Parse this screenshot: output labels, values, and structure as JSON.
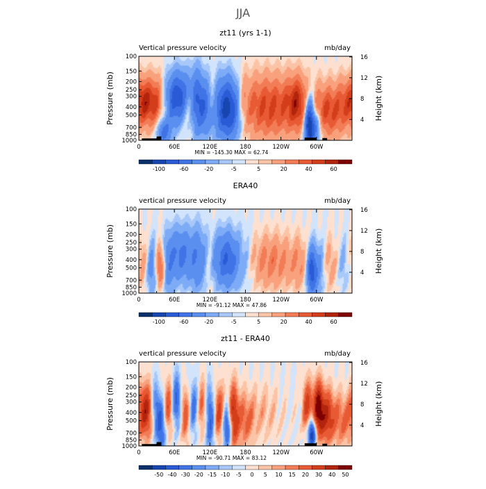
{
  "page": {
    "title": "JJA"
  },
  "chart_data": [
    {
      "type": "heatmap",
      "title": "zt11 (yrs 1-1)",
      "subtitle_left": "Vertical pressure velocity",
      "subtitle_right": "mb/day",
      "xlabel": "",
      "ylabel": "Pressure (mb)",
      "ylabel_right": "Height (km)",
      "x_ticks": [
        "0",
        "60E",
        "120E",
        "180",
        "120W",
        "60W"
      ],
      "x_tick_lon": [
        0,
        60,
        120,
        180,
        240,
        300
      ],
      "xlim": [
        0,
        360
      ],
      "y_ticks": [
        "100",
        "150",
        "200",
        "250",
        "300",
        "400",
        "500",
        "700",
        "850",
        "1000"
      ],
      "y_tick_values": [
        100,
        150,
        200,
        250,
        300,
        400,
        500,
        700,
        850,
        1000
      ],
      "ylim": [
        1000,
        100
      ],
      "y_scale": "log",
      "right_ticks": [
        "4",
        "8",
        "12",
        "16"
      ],
      "right_tick_values": [
        4,
        8,
        12,
        16
      ],
      "stats": "MIN = -145.30   MAX = 62.74",
      "colorbar_labels": [
        "-100",
        "-60",
        "-20",
        "-5",
        "5",
        "20",
        "40",
        "60"
      ],
      "colorbar_colors": [
        "#08306b",
        "#1746b0",
        "#2a5bd7",
        "#3f73e6",
        "#5a8ff0",
        "#7eabf5",
        "#a8c8fa",
        "#d2e4fc",
        "#fde0cf",
        "#fbc4a6",
        "#f8a17c",
        "#f27c56",
        "#e85a33",
        "#d43d1a",
        "#b3240d",
        "#7f0000"
      ],
      "levels": [
        -120,
        -100,
        -80,
        -60,
        -40,
        -20,
        -10,
        -5,
        0,
        5,
        10,
        20,
        30,
        40,
        50,
        60,
        80
      ],
      "features": [
        {
          "lon": 10,
          "p": 350,
          "amp": 45,
          "wl": 12,
          "wp": 0.45
        },
        {
          "lon": 30,
          "p": 350,
          "amp": 30,
          "wl": 10,
          "wp": 0.5
        },
        {
          "lon": 42,
          "p": 800,
          "amp": -50,
          "wl": 8,
          "wp": 0.25
        },
        {
          "lon": 55,
          "p": 350,
          "amp": -30,
          "wl": 10,
          "wp": 0.5
        },
        {
          "lon": 70,
          "p": 300,
          "amp": -65,
          "wl": 12,
          "wp": 0.45
        },
        {
          "lon": 85,
          "p": 400,
          "amp": 25,
          "wl": 8,
          "wp": 0.4
        },
        {
          "lon": 98,
          "p": 350,
          "amp": -55,
          "wl": 8,
          "wp": 0.6
        },
        {
          "lon": 112,
          "p": 400,
          "amp": -40,
          "wl": 8,
          "wp": 0.5
        },
        {
          "lon": 125,
          "p": 350,
          "amp": 20,
          "wl": 6,
          "wp": 0.4
        },
        {
          "lon": 150,
          "p": 420,
          "amp": -100,
          "wl": 16,
          "wp": 0.55
        },
        {
          "lon": 175,
          "p": 350,
          "amp": 15,
          "wl": 8,
          "wp": 0.5
        },
        {
          "lon": 220,
          "p": 400,
          "amp": 42,
          "wl": 40,
          "wp": 0.6
        },
        {
          "lon": 268,
          "p": 350,
          "amp": 35,
          "wl": 12,
          "wp": 0.5
        },
        {
          "lon": 288,
          "p": 650,
          "amp": -110,
          "wl": 6,
          "wp": 0.5
        },
        {
          "lon": 300,
          "p": 700,
          "amp": -40,
          "wl": 6,
          "wp": 0.3
        },
        {
          "lon": 320,
          "p": 450,
          "amp": 40,
          "wl": 20,
          "wp": 0.5
        },
        {
          "lon": 350,
          "p": 350,
          "amp": 20,
          "wl": 12,
          "wp": 0.5
        }
      ],
      "topo": [
        [
          5,
          30,
          950
        ],
        [
          30,
          38,
          900
        ],
        [
          280,
          300,
          930
        ],
        [
          310,
          318,
          940
        ]
      ]
    },
    {
      "type": "heatmap",
      "title": "ERA40",
      "subtitle_left": "vertical pressure velocity",
      "subtitle_right": "mb/day",
      "xlabel": "",
      "ylabel": "Pressure (mb)",
      "ylabel_right": "Height (km)",
      "x_ticks": [
        "0",
        "60E",
        "120E",
        "180",
        "120W",
        "60W"
      ],
      "x_tick_lon": [
        0,
        60,
        120,
        180,
        240,
        300
      ],
      "xlim": [
        0,
        360
      ],
      "y_ticks": [
        "100",
        "150",
        "200",
        "250",
        "300",
        "400",
        "500",
        "700",
        "850",
        "1000"
      ],
      "y_tick_values": [
        100,
        150,
        200,
        250,
        300,
        400,
        500,
        700,
        850,
        1000
      ],
      "ylim": [
        1000,
        100
      ],
      "y_scale": "log",
      "right_ticks": [
        "4",
        "8",
        "12",
        "16"
      ],
      "right_tick_values": [
        4,
        8,
        12,
        16
      ],
      "stats": "MIN = -91.12   MAX = 47.86",
      "colorbar_labels": [
        "-100",
        "-60",
        "-20",
        "-5",
        "5",
        "20",
        "40",
        "60"
      ],
      "colorbar_colors": [
        "#08306b",
        "#1746b0",
        "#2a5bd7",
        "#3f73e6",
        "#5a8ff0",
        "#7eabf5",
        "#a8c8fa",
        "#d2e4fc",
        "#fde0cf",
        "#fbc4a6",
        "#f8a17c",
        "#f27c56",
        "#e85a33",
        "#d43d1a",
        "#b3240d",
        "#7f0000"
      ],
      "levels": [
        -120,
        -100,
        -80,
        -60,
        -40,
        -20,
        -10,
        -5,
        0,
        5,
        10,
        20,
        30,
        40,
        50,
        60,
        80
      ],
      "features": [
        {
          "lon": 8,
          "p": 450,
          "amp": 20,
          "wl": 8,
          "wp": 0.5
        },
        {
          "lon": 22,
          "p": 500,
          "amp": -35,
          "wl": 8,
          "wp": 0.5
        },
        {
          "lon": 35,
          "p": 480,
          "amp": 45,
          "wl": 6,
          "wp": 0.4
        },
        {
          "lon": 50,
          "p": 500,
          "amp": -25,
          "wl": 6,
          "wp": 0.6
        },
        {
          "lon": 70,
          "p": 350,
          "amp": -45,
          "wl": 14,
          "wp": 0.5
        },
        {
          "lon": 100,
          "p": 400,
          "amp": -35,
          "wl": 10,
          "wp": 0.6
        },
        {
          "lon": 118,
          "p": 500,
          "amp": 10,
          "wl": 5,
          "wp": 0.5
        },
        {
          "lon": 148,
          "p": 400,
          "amp": -60,
          "wl": 15,
          "wp": 0.5
        },
        {
          "lon": 180,
          "p": 400,
          "amp": -10,
          "wl": 10,
          "wp": 0.6
        },
        {
          "lon": 225,
          "p": 420,
          "amp": 25,
          "wl": 28,
          "wp": 0.5
        },
        {
          "lon": 272,
          "p": 450,
          "amp": 15,
          "wl": 10,
          "wp": 0.5
        },
        {
          "lon": 292,
          "p": 550,
          "amp": -75,
          "wl": 6,
          "wp": 0.45
        },
        {
          "lon": 305,
          "p": 500,
          "amp": -20,
          "wl": 6,
          "wp": 0.5
        },
        {
          "lon": 325,
          "p": 450,
          "amp": 15,
          "wl": 8,
          "wp": 0.5
        },
        {
          "lon": 345,
          "p": 450,
          "amp": -12,
          "wl": 8,
          "wp": 0.5
        }
      ],
      "topo": []
    },
    {
      "type": "heatmap",
      "title": "zt11 - ERA40",
      "subtitle_left": "vertical pressure velocity",
      "subtitle_right": "mb/day",
      "xlabel": "",
      "ylabel": "Pressure (mb)",
      "ylabel_right": "Height (km)",
      "x_ticks": [
        "0",
        "60E",
        "120E",
        "180",
        "120W",
        "60W"
      ],
      "x_tick_lon": [
        0,
        60,
        120,
        180,
        240,
        300
      ],
      "xlim": [
        0,
        360
      ],
      "y_ticks": [
        "100",
        "150",
        "200",
        "250",
        "300",
        "400",
        "500",
        "700",
        "850",
        "1000"
      ],
      "y_tick_values": [
        100,
        150,
        200,
        250,
        300,
        400,
        500,
        700,
        850,
        1000
      ],
      "ylim": [
        1000,
        100
      ],
      "y_scale": "log",
      "right_ticks": [
        "4",
        "8",
        "12",
        "16"
      ],
      "right_tick_values": [
        4,
        8,
        12,
        16
      ],
      "stats": "MIN = -90.71   MAX = 83.12",
      "colorbar_labels": [
        "-50",
        "-40",
        "-30",
        "-20",
        "-15",
        "-10",
        "-5",
        "0",
        "5",
        "10",
        "15",
        "20",
        "30",
        "40",
        "50"
      ],
      "colorbar_colors": [
        "#08306b",
        "#1746b0",
        "#2a5bd7",
        "#3f73e6",
        "#5a8ff0",
        "#7eabf5",
        "#a8c8fa",
        "#d2e4fc",
        "#fde0cf",
        "#fbc4a6",
        "#f8a17c",
        "#f27c56",
        "#e85a33",
        "#d43d1a",
        "#b3240d",
        "#7f0000"
      ],
      "levels": [
        -60,
        -50,
        -40,
        -30,
        -20,
        -15,
        -10,
        -5,
        0,
        5,
        10,
        15,
        20,
        30,
        40,
        50,
        60
      ],
      "features": [
        {
          "lon": 12,
          "p": 380,
          "amp": 45,
          "wl": 10,
          "wp": 0.5
        },
        {
          "lon": 28,
          "p": 350,
          "amp": -30,
          "wl": 6,
          "wp": 0.5
        },
        {
          "lon": 38,
          "p": 600,
          "amp": -30,
          "wl": 6,
          "wp": 0.5
        },
        {
          "lon": 50,
          "p": 350,
          "amp": 30,
          "wl": 6,
          "wp": 0.5
        },
        {
          "lon": 64,
          "p": 300,
          "amp": -35,
          "wl": 6,
          "wp": 0.5
        },
        {
          "lon": 78,
          "p": 400,
          "amp": 30,
          "wl": 6,
          "wp": 0.5
        },
        {
          "lon": 92,
          "p": 350,
          "amp": -25,
          "wl": 6,
          "wp": 0.5
        },
        {
          "lon": 108,
          "p": 350,
          "amp": 25,
          "wl": 6,
          "wp": 0.5
        },
        {
          "lon": 120,
          "p": 450,
          "amp": -35,
          "wl": 6,
          "wp": 0.6
        },
        {
          "lon": 135,
          "p": 400,
          "amp": 35,
          "wl": 6,
          "wp": 0.5
        },
        {
          "lon": 150,
          "p": 600,
          "amp": -40,
          "wl": 6,
          "wp": 0.4
        },
        {
          "lon": 160,
          "p": 450,
          "amp": 45,
          "wl": 6,
          "wp": 0.6
        },
        {
          "lon": 180,
          "p": 500,
          "amp": 20,
          "wl": 10,
          "wp": 0.5
        },
        {
          "lon": 210,
          "p": 400,
          "amp": 10,
          "wl": 20,
          "wp": 0.5
        },
        {
          "lon": 285,
          "p": 350,
          "amp": 35,
          "wl": 6,
          "wp": 0.5
        },
        {
          "lon": 292,
          "p": 700,
          "amp": -55,
          "wl": 5,
          "wp": 0.3
        },
        {
          "lon": 303,
          "p": 350,
          "amp": 50,
          "wl": 6,
          "wp": 0.5
        },
        {
          "lon": 318,
          "p": 450,
          "amp": 40,
          "wl": 10,
          "wp": 0.5
        },
        {
          "lon": 345,
          "p": 500,
          "amp": 20,
          "wl": 10,
          "wp": 0.5
        }
      ],
      "topo": [
        [
          5,
          30,
          950
        ],
        [
          30,
          38,
          900
        ],
        [
          280,
          300,
          930
        ],
        [
          310,
          318,
          940
        ]
      ]
    }
  ]
}
